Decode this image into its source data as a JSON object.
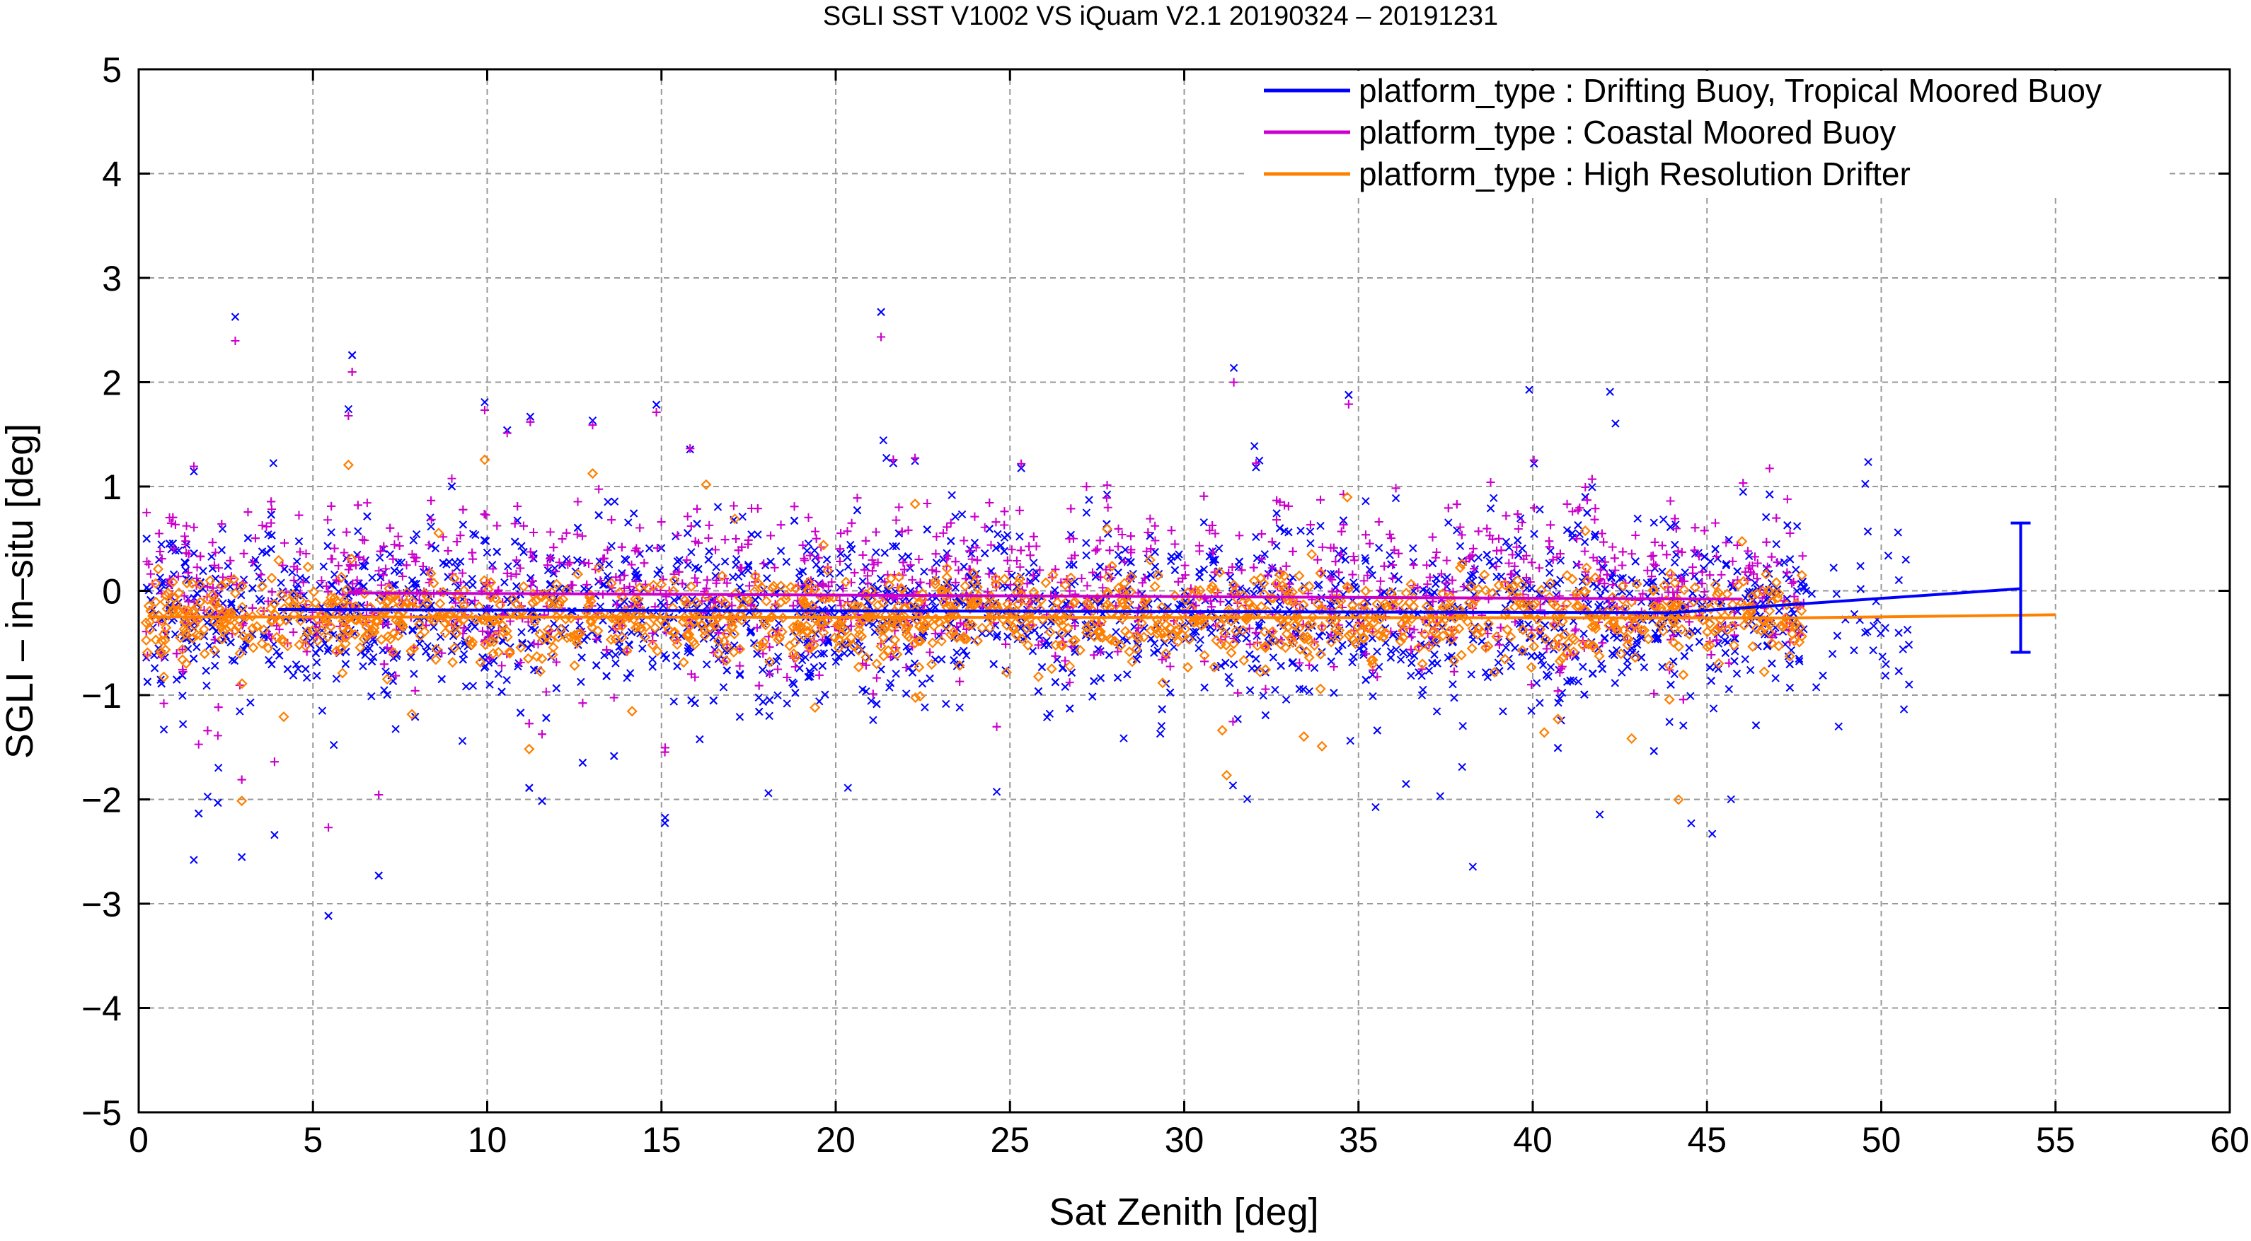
{
  "chart_data": {
    "type": "scatter",
    "title": "SGLI SST V1002 VS iQuam V2.1 20190324 – 20191231",
    "xlabel": "Sat Zenith [deg]",
    "ylabel": "SGLI – in–situ [deg]",
    "xlim": [
      0,
      60
    ],
    "ylim": [
      -5,
      5
    ],
    "x_ticks": [
      "0",
      "5",
      "10",
      "15",
      "20",
      "25",
      "30",
      "35",
      "40",
      "45",
      "50",
      "55",
      "60"
    ],
    "y_ticks": [
      "−5",
      "−4",
      "−3",
      "−2",
      "−1",
      "0",
      "1",
      "2",
      "3",
      "4",
      "5"
    ],
    "grid": true,
    "legend_position": "top-right",
    "series": [
      {
        "name": "platform_type : Drifting Buoy, Tropical Moored Buoy",
        "color": "#0000ff",
        "marker": "x",
        "mean_line": {
          "x": [
            4,
            44,
            47.5,
            54
          ],
          "y": [
            -0.18,
            -0.21,
            -0.13,
            0.02
          ]
        },
        "error_bar": {
          "x": 54,
          "center": 0.02,
          "low": -0.59,
          "high": 0.65
        }
      },
      {
        "name": "platform_type : Coastal Moored Buoy",
        "color": "#cc00cc",
        "marker": "+",
        "mean_line": {
          "x": [
            6,
            46
          ],
          "y": [
            -0.02,
            -0.08
          ]
        }
      },
      {
        "name": "platform_type : High Resolution Drifter",
        "color": "#ff8000",
        "marker": "diamond",
        "mean_line": {
          "x": [
            0.3,
            47.5,
            55
          ],
          "y": [
            -0.25,
            -0.26,
            -0.23
          ]
        }
      }
    ]
  }
}
